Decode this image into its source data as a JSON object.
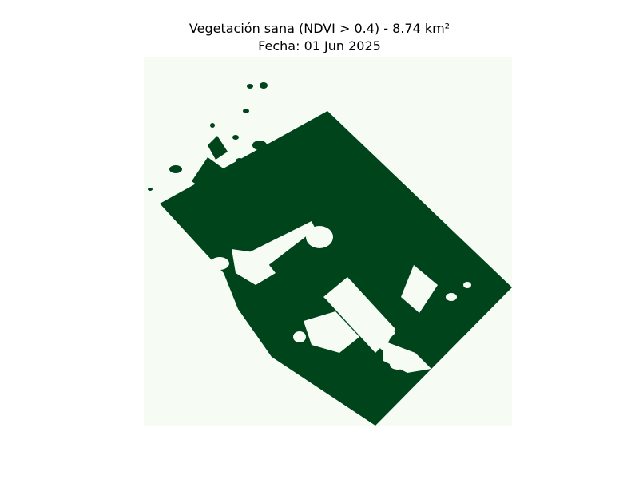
{
  "figure": {
    "title_line1": "Vegetación sana (NDVI > 0.4) - 8.74 km²",
    "title_line2": "Fecha: 01 Jun 2025"
  },
  "map": {
    "mask_description_colors": {
      "background": "#f6fbf4",
      "vegetation": "#00441b"
    }
  }
}
